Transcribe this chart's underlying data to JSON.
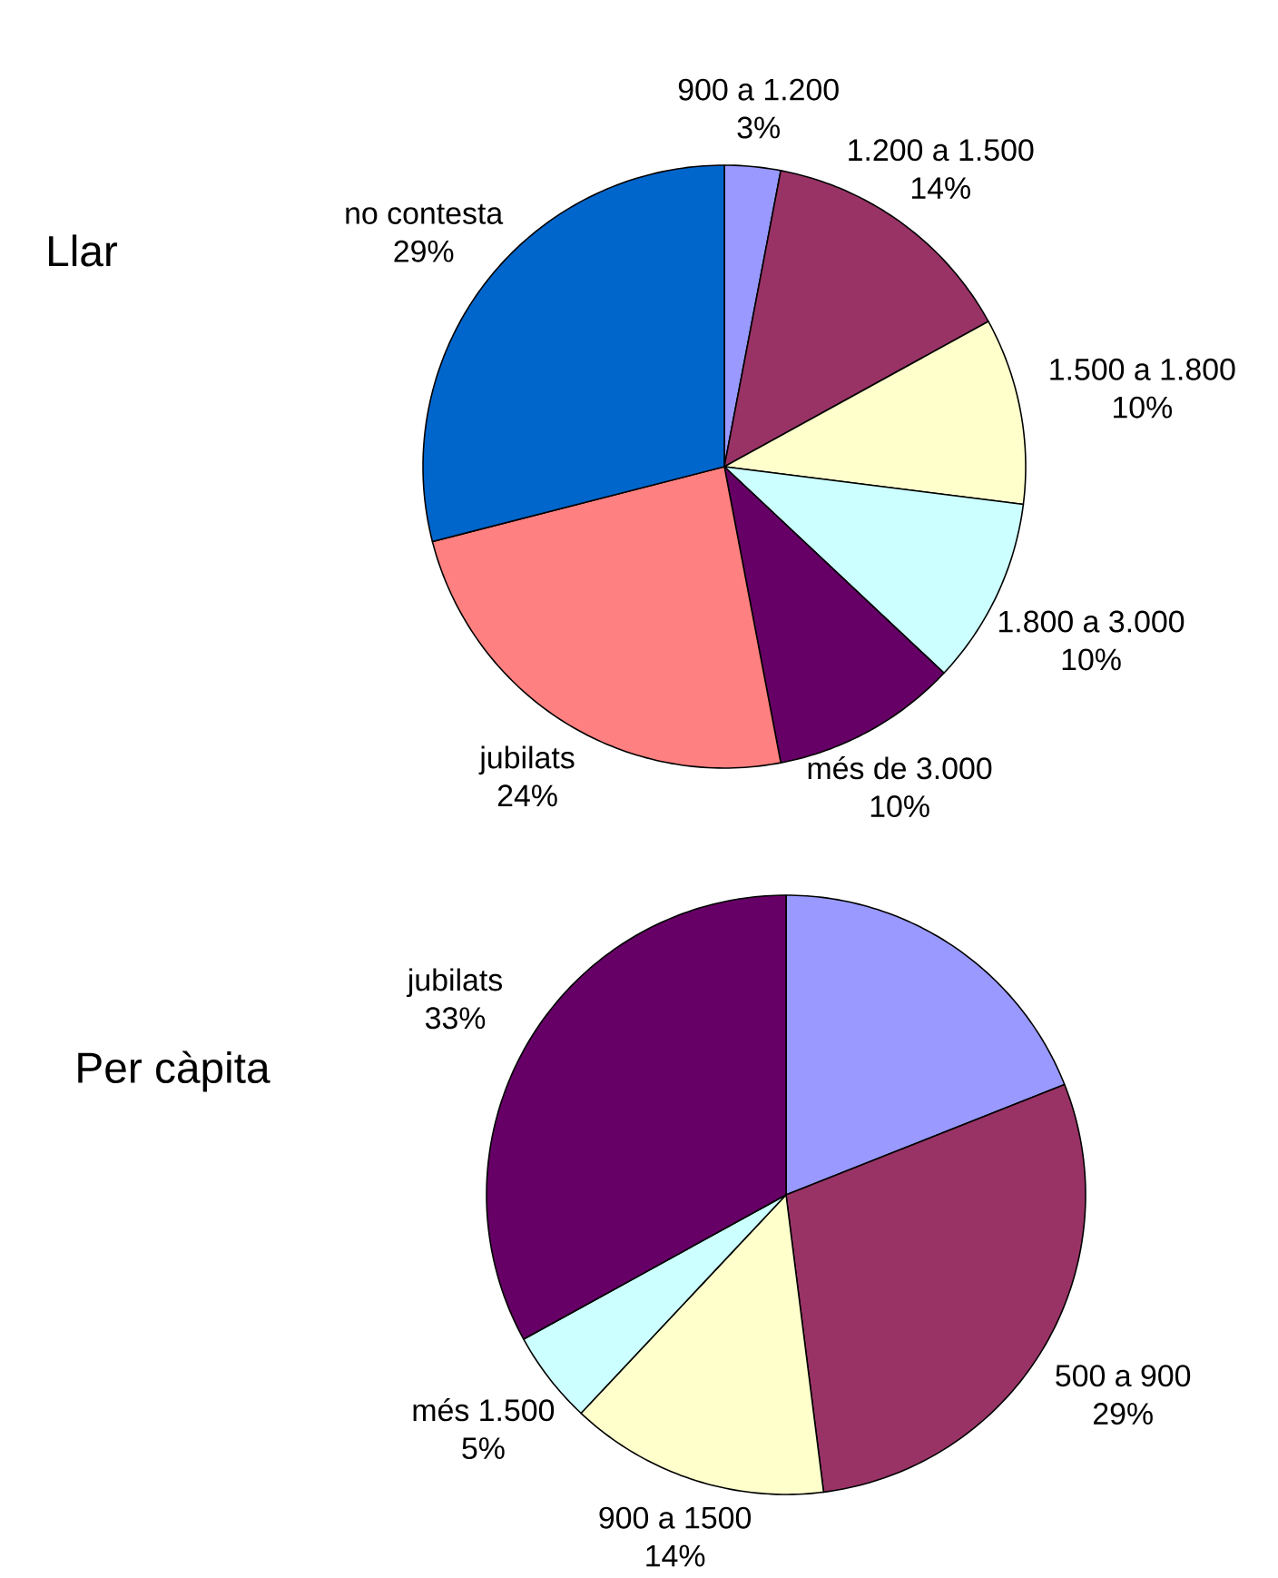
{
  "chart_data": [
    {
      "type": "pie",
      "title": "Llar",
      "categories": [
        "900 a 1.200",
        "1.200 a 1.500",
        "1.500 a 1.800",
        "1.800 a 3.000",
        "més de 3.000",
        "jubilats",
        "no contesta"
      ],
      "values": [
        3,
        14,
        10,
        10,
        10,
        24,
        29
      ],
      "value_labels": [
        "3%",
        "14%",
        "10%",
        "10%",
        "10%",
        "24%",
        "29%"
      ],
      "colors": [
        "#9999ff",
        "#993366",
        "#ffffcc",
        "#ccffff",
        "#660066",
        "#ff8080",
        "#0066cc"
      ]
    },
    {
      "type": "pie",
      "title": "Per càpita",
      "categories": [
        null,
        "500 a 900",
        "900 a 1500",
        "més 1.500",
        "jubilats"
      ],
      "values": [
        19,
        29,
        14,
        5,
        33
      ],
      "value_labels": [
        null,
        "29%",
        "14%",
        "5%",
        "33%"
      ],
      "colors": [
        "#9999ff",
        "#993366",
        "#ffffcc",
        "#ccffff",
        "#660066"
      ]
    }
  ]
}
